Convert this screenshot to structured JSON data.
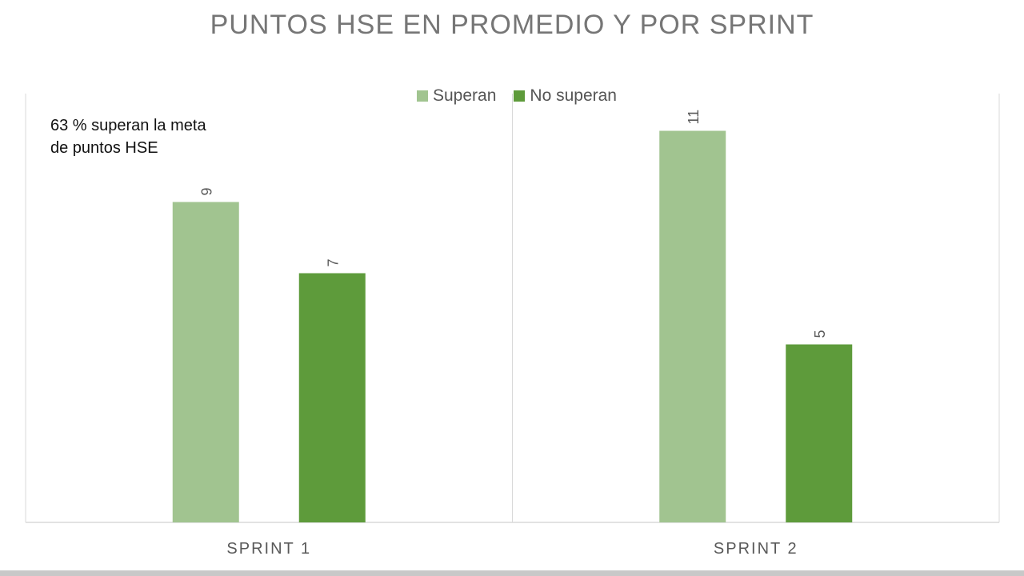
{
  "title": "PUNTOS HSE EN PROMEDIO Y POR SPRINT",
  "annotation": {
    "line1": "63 %  superan la meta",
    "line2": "de puntos HSE"
  },
  "colors": {
    "superan": "#a1c490",
    "no_superan": "#5e9b3b",
    "axis": "#d9d9d9",
    "label": "#595959"
  },
  "chart_data": {
    "type": "bar",
    "title": "PUNTOS HSE EN PROMEDIO Y POR SPRINT",
    "categories": [
      "SPRINT 1",
      "SPRINT 2"
    ],
    "series": [
      {
        "name": "Superan",
        "values": [
          9,
          11
        ]
      },
      {
        "name": "No superan",
        "values": [
          7,
          5
        ]
      }
    ],
    "ylim": [
      0,
      12
    ],
    "grid": false,
    "legend": "top-center",
    "data_labels": true
  }
}
